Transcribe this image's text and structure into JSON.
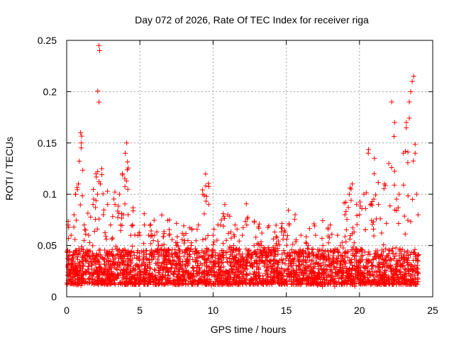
{
  "chart_data": {
    "type": "scatter",
    "title": "Day 072 of 2026, Rate Of TEC Index for receiver riga",
    "xlabel": "GPS time / hours",
    "ylabel": "ROTI / TECUs",
    "xlim": [
      0,
      25
    ],
    "ylim": [
      0,
      0.25
    ],
    "xticks": [
      0,
      5,
      10,
      15,
      20,
      25
    ],
    "yticks": [
      0,
      0.05,
      0.1,
      0.15,
      0.2,
      0.25
    ],
    "xtick_labels": [
      "0",
      "5",
      "10",
      "15",
      "20",
      "25"
    ],
    "ytick_labels": [
      "0",
      "0.05",
      "0.1",
      "0.15",
      "0.2",
      "0.25"
    ],
    "grid": true,
    "marker": "+",
    "color": "#ff0000",
    "series": [
      {
        "name": "ROTI",
        "x": [
          0.1,
          0.3,
          0.5,
          0.6,
          0.8,
          0.95,
          1.0,
          1.2,
          1.5,
          1.8,
          2.0,
          2.1,
          2.2,
          2.25,
          2.3,
          2.5,
          2.8,
          3.0,
          3.3,
          3.6,
          3.8,
          4.0,
          4.1,
          4.2,
          4.5,
          5.0,
          5.3,
          5.6,
          6.0,
          6.5,
          7.0,
          7.5,
          8.0,
          8.5,
          9.0,
          9.3,
          9.5,
          9.7,
          10.0,
          10.5,
          10.8,
          11.0,
          11.5,
          12.0,
          12.3,
          12.8,
          13.2,
          13.8,
          14.3,
          14.8,
          15.2,
          15.6,
          16.0,
          16.5,
          17.0,
          17.5,
          18.0,
          18.5,
          19.0,
          19.3,
          19.5,
          19.8,
          20.0,
          20.3,
          20.6,
          21.0,
          21.3,
          21.7,
          22.0,
          22.2,
          22.4,
          22.7,
          23.0,
          23.2,
          23.4,
          23.5,
          23.6,
          23.7,
          23.8,
          23.9,
          24.0
        ],
        "y": [
          0.07,
          0.06,
          0.08,
          0.1,
          0.11,
          0.16,
          0.15,
          0.07,
          0.06,
          0.09,
          0.12,
          0.1,
          0.245,
          0.24,
          0.11,
          0.08,
          0.09,
          0.07,
          0.09,
          0.1,
          0.12,
          0.14,
          0.15,
          0.08,
          0.07,
          0.06,
          0.07,
          0.06,
          0.06,
          0.05,
          0.06,
          0.05,
          0.06,
          0.05,
          0.07,
          0.1,
          0.108,
          0.09,
          0.06,
          0.07,
          0.09,
          0.08,
          0.07,
          0.06,
          0.07,
          0.05,
          0.05,
          0.04,
          0.05,
          0.06,
          0.07,
          0.08,
          0.06,
          0.05,
          0.06,
          0.05,
          0.07,
          0.06,
          0.08,
          0.1,
          0.11,
          0.09,
          0.08,
          0.1,
          0.14,
          0.12,
          0.09,
          0.11,
          0.13,
          0.19,
          0.17,
          0.1,
          0.14,
          0.17,
          0.19,
          0.2,
          0.21,
          0.215,
          0.14,
          0.1,
          0.08
        ]
      }
    ]
  }
}
